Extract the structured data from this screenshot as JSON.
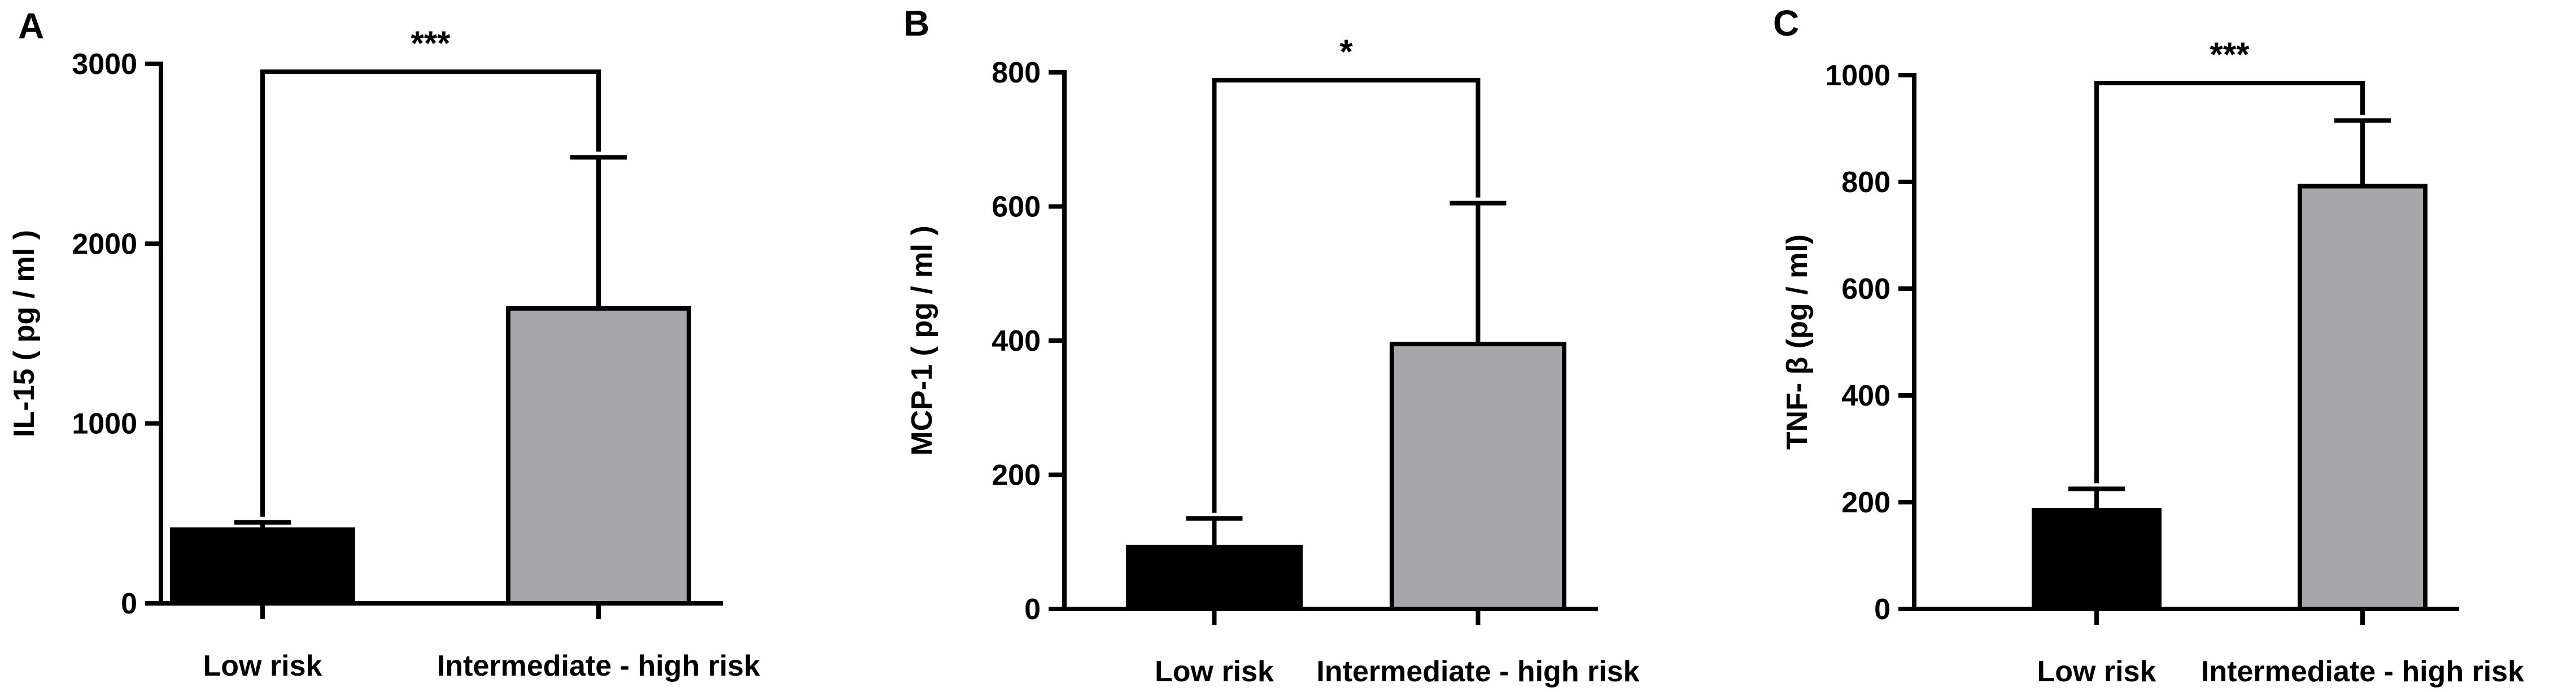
{
  "chart_data": [
    {
      "type": "bar",
      "panel_label": "A",
      "categories": [
        "Low risk",
        "Intermediate - high risk"
      ],
      "values": [
        410,
        1640
      ],
      "error_upper": [
        450,
        2480
      ],
      "bar_colors": [
        "#000000",
        "#a7a6ab"
      ],
      "ylabel": "IL-15 ( pg / ml )",
      "ylim": [
        0,
        3000
      ],
      "yticks": [
        "0",
        "1000",
        "2000",
        "3000"
      ],
      "significance": "***",
      "grid": false
    },
    {
      "type": "bar",
      "panel_label": "B",
      "categories": [
        "Low risk",
        "Intermediate - high risk"
      ],
      "values": [
        92,
        395
      ],
      "error_upper": [
        135,
        605
      ],
      "bar_colors": [
        "#000000",
        "#a7a6ab"
      ],
      "ylabel": "MCP-1 ( pg / ml )",
      "ylim": [
        0,
        800
      ],
      "yticks": [
        "0",
        "200",
        "400",
        "600",
        "800"
      ],
      "significance": "*",
      "grid": false
    },
    {
      "type": "bar",
      "panel_label": "C",
      "categories": [
        "Low risk",
        "Intermediate - high risk"
      ],
      "values": [
        185,
        792
      ],
      "error_upper": [
        225,
        915
      ],
      "bar_colors": [
        "#000000",
        "#a7a6ab"
      ],
      "ylabel": "TNF- β   (pg / ml)",
      "ylim": [
        0,
        1000
      ],
      "yticks": [
        "0",
        "200",
        "400",
        "600",
        "800",
        "1000"
      ],
      "significance": "***",
      "grid": false
    }
  ]
}
